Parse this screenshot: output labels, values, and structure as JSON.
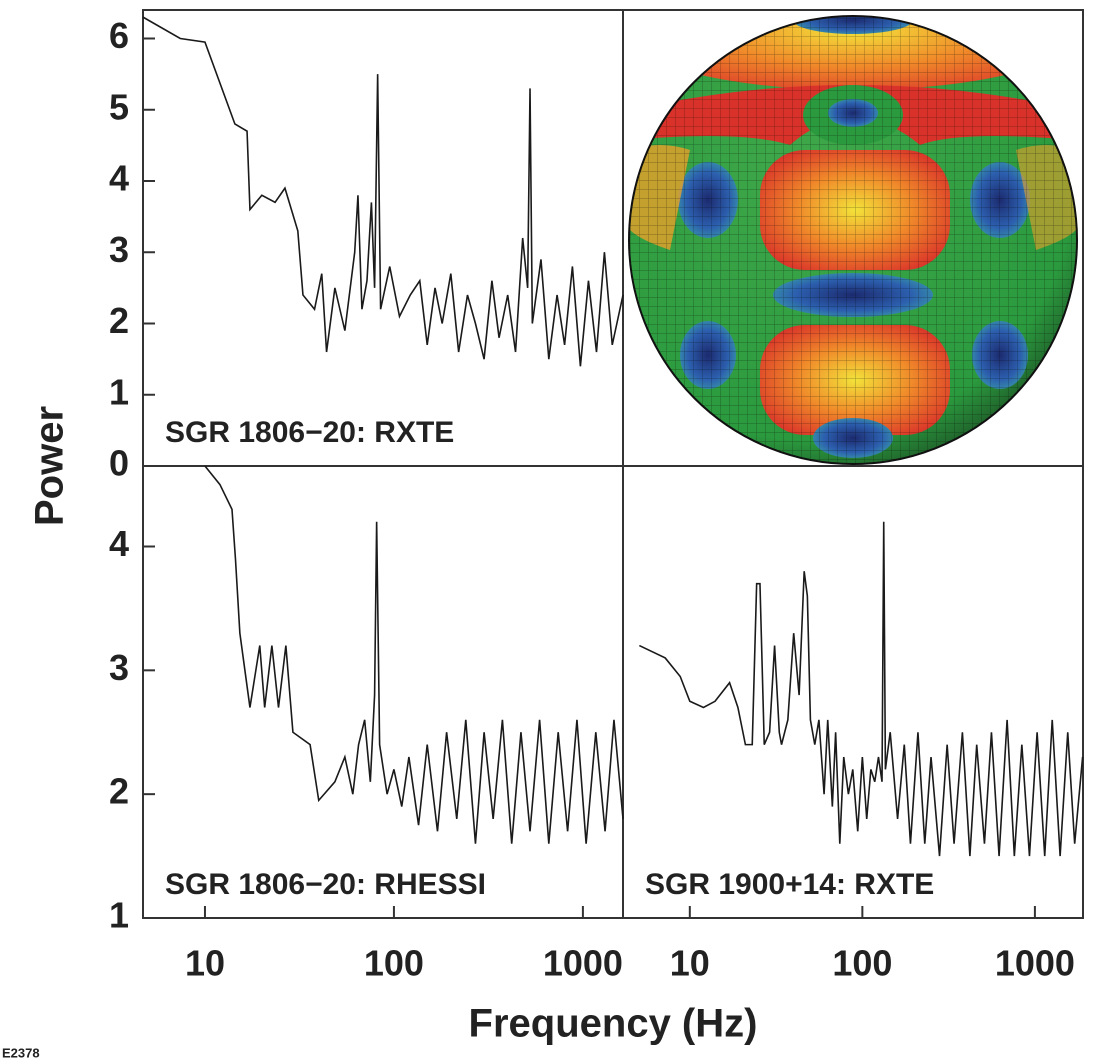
{
  "ylabel": "Power",
  "xlabel": "Frequency (Hz)",
  "figure_id": "E2378",
  "chart_data": [
    {
      "type": "line",
      "label": "SGR 1806−20: RXTE",
      "xscale": "log",
      "color": "#1a1a1a",
      "xlim": [
        4.7,
        1630
      ],
      "ylim": [
        0,
        6.4
      ],
      "yticks": [
        0,
        1,
        2,
        3,
        4,
        5,
        6
      ],
      "x": [
        4.7,
        7.4,
        10,
        14.4,
        16.7,
        17.3,
        20,
        23.5,
        26.5,
        31,
        33,
        38,
        41.5,
        44,
        48.7,
        55,
        62,
        64.5,
        67.7,
        72,
        76,
        79,
        82,
        85,
        95,
        107,
        122,
        137,
        150,
        165,
        180,
        200,
        220,
        245,
        270,
        300,
        330,
        360,
        400,
        440,
        480,
        510,
        525,
        540,
        600,
        660,
        730,
        800,
        880,
        970,
        1070,
        1180,
        1300,
        1430,
        1630
      ],
      "values": [
        6.3,
        6.0,
        5.95,
        4.8,
        4.7,
        3.6,
        3.8,
        3.7,
        3.9,
        3.3,
        2.4,
        2.2,
        2.7,
        1.6,
        2.5,
        1.9,
        3.0,
        3.8,
        2.2,
        2.6,
        3.7,
        2.5,
        5.5,
        2.2,
        2.8,
        2.1,
        2.4,
        2.6,
        1.7,
        2.5,
        2.0,
        2.7,
        1.6,
        2.4,
        2.0,
        1.5,
        2.6,
        1.8,
        2.4,
        1.6,
        3.2,
        2.5,
        5.3,
        2.0,
        2.9,
        1.5,
        2.4,
        1.7,
        2.8,
        1.4,
        2.6,
        1.6,
        3.0,
        1.7,
        2.4
      ]
    },
    {
      "type": "line",
      "label": "SGR 1806−20: RHESSI",
      "xscale": "log",
      "color": "#1a1a1a",
      "xlim": [
        4.7,
        1630
      ],
      "ylim": [
        1,
        4.65
      ],
      "yticks": [
        1,
        2,
        3,
        4
      ],
      "xticks": [
        10,
        100,
        1000
      ],
      "x": [
        10,
        12,
        13.9,
        14.5,
        15.3,
        17.3,
        19.5,
        20.7,
        22.6,
        24.5,
        26.8,
        29.2,
        36,
        40,
        48.7,
        55,
        60.6,
        65,
        70,
        75,
        79,
        81,
        84,
        92,
        100,
        110,
        120,
        135,
        150,
        170,
        190,
        215,
        240,
        270,
        300,
        335,
        375,
        420,
        470,
        525,
        590,
        660,
        740,
        830,
        930,
        1040,
        1170,
        1310,
        1460,
        1630
      ],
      "values": [
        4.65,
        4.5,
        4.3,
        3.9,
        3.3,
        2.7,
        3.2,
        2.7,
        3.2,
        2.7,
        3.2,
        2.5,
        2.4,
        1.95,
        2.1,
        2.3,
        2.0,
        2.4,
        2.6,
        2.1,
        2.8,
        4.2,
        2.4,
        2.0,
        2.2,
        1.9,
        2.3,
        1.75,
        2.4,
        1.7,
        2.5,
        1.8,
        2.6,
        1.6,
        2.5,
        1.8,
        2.6,
        1.6,
        2.5,
        1.7,
        2.6,
        1.6,
        2.5,
        1.7,
        2.6,
        1.6,
        2.5,
        1.7,
        2.6,
        1.8
      ]
    },
    {
      "type": "line",
      "label": "SGR 1900+14: RXTE",
      "xscale": "log",
      "color": "#1a1a1a",
      "xlim": [
        4.1,
        1900
      ],
      "ylim": [
        1,
        4.65
      ],
      "xticks": [
        10,
        100,
        1000
      ],
      "x": [
        5.1,
        7.2,
        8.8,
        10,
        12,
        14,
        17,
        19,
        21,
        23,
        24.4,
        25.5,
        27,
        29,
        31,
        33,
        34,
        37,
        40,
        43,
        46,
        48,
        50,
        53,
        56,
        60,
        63,
        67,
        70,
        74,
        78,
        83,
        88,
        94,
        100,
        106,
        112,
        118,
        124,
        130,
        133,
        136,
        145,
        160,
        175,
        190,
        210,
        230,
        250,
        280,
        310,
        340,
        380,
        420,
        460,
        510,
        560,
        620,
        690,
        760,
        840,
        930,
        1030,
        1140,
        1260,
        1400,
        1550,
        1700,
        1890
      ],
      "values": [
        3.2,
        3.1,
        2.95,
        2.75,
        2.7,
        2.75,
        2.9,
        2.7,
        2.4,
        2.4,
        3.7,
        3.7,
        2.4,
        2.5,
        3.2,
        2.5,
        2.4,
        2.6,
        3.3,
        2.8,
        3.8,
        3.6,
        2.6,
        2.4,
        2.6,
        2.0,
        2.6,
        1.9,
        2.5,
        1.6,
        2.3,
        2.0,
        2.2,
        1.7,
        2.3,
        1.8,
        2.2,
        2.1,
        2.3,
        2.1,
        4.2,
        2.2,
        2.5,
        1.8,
        2.4,
        1.6,
        2.5,
        1.6,
        2.3,
        1.5,
        2.4,
        1.6,
        2.5,
        1.5,
        2.4,
        1.6,
        2.5,
        1.5,
        2.6,
        1.5,
        2.4,
        1.5,
        2.5,
        1.5,
        2.6,
        1.5,
        2.5,
        1.6,
        2.3
      ]
    }
  ]
}
